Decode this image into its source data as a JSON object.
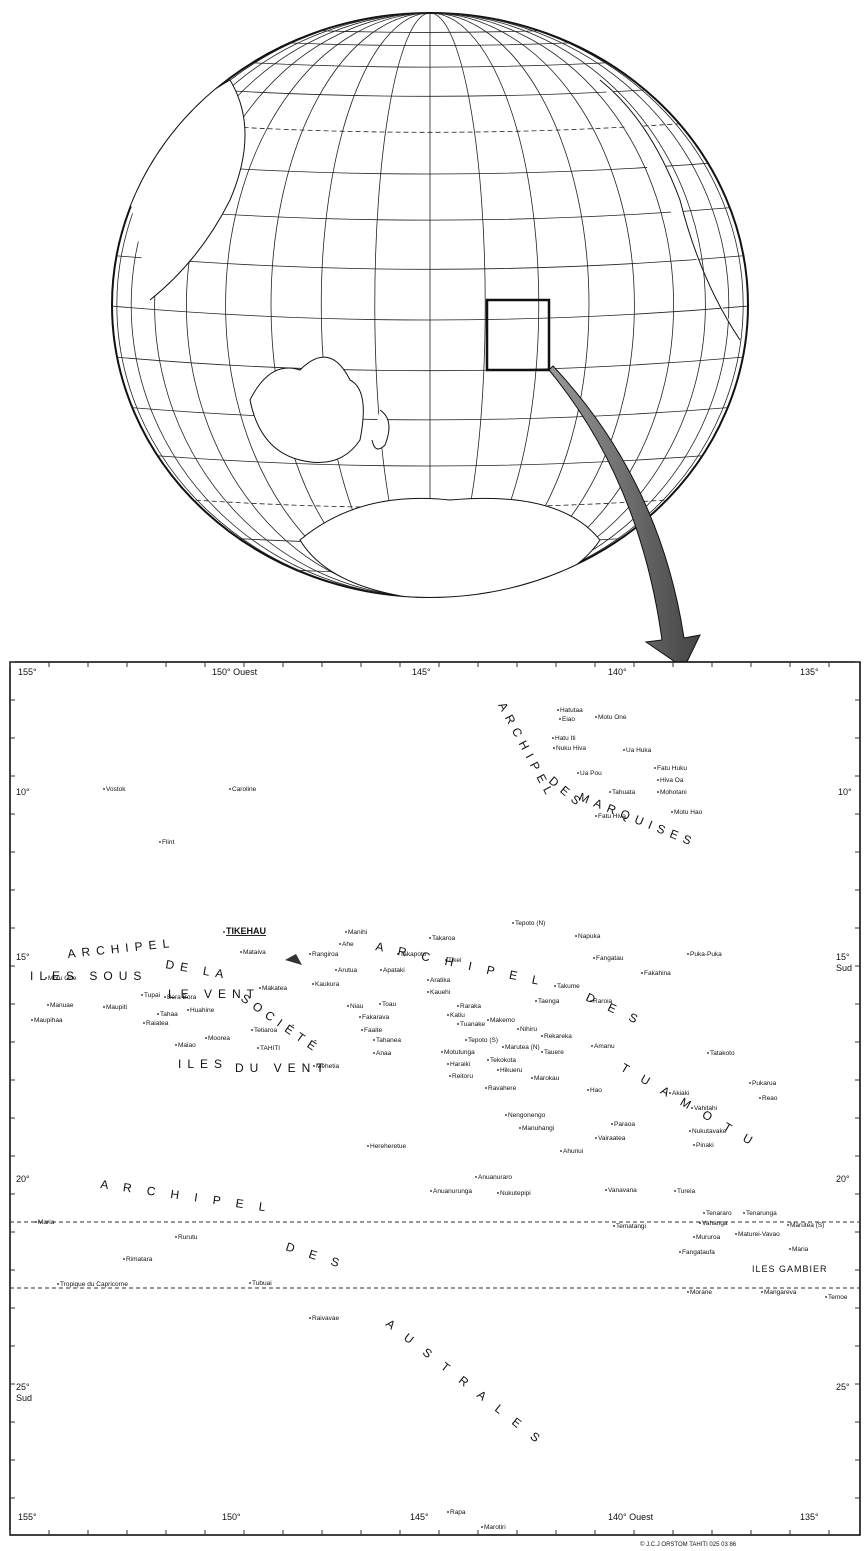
{
  "map": {
    "axis_top": [
      "155°",
      "150° Ouest",
      "145°",
      "140°",
      "135°"
    ],
    "axis_bottom": [
      "155°",
      "150°",
      "145°",
      "140° Ouest",
      "135°"
    ],
    "axis_left": [
      "10°",
      "15°",
      "20°",
      "25°",
      "Sud"
    ],
    "axis_right": [
      "10°",
      "15°",
      "Sud",
      "20°",
      "25°"
    ],
    "regions": [
      "ARCHIPEL",
      "DES",
      "MARQUISES",
      "A R C H I P E L",
      "D E S",
      "T U A M O T U",
      "ARCHIPEL",
      "DE LA",
      "SOCIÉTÉ",
      "ILES SOUS",
      "LE VENT",
      "ILES",
      "DU VENT",
      "A R C H I P E L",
      "D E S",
      "A U S T R A L E S",
      "ILES GAMBIER"
    ],
    "islands": [
      "Hatutaa",
      "Eiao",
      "Motu One",
      "Hatu Iti",
      "Nuku Hiva",
      "Ua Huka",
      "Ua Pou",
      "Fatu Huku",
      "Hiva Oa",
      "Tahuata",
      "Mohotani",
      "Fatu Hiva",
      "Motu Hao",
      "Vostok",
      "Caroline",
      "Flint",
      "TIKEHAU",
      "Manihi",
      "Takaroa",
      "Tepoto (N)",
      "Napuka",
      "Mataiva",
      "Rangiroa",
      "Ahe",
      "Takapoto",
      "Tikei",
      "Puka-Puka",
      "Arutua",
      "Apataki",
      "Kaukura",
      "Aratika",
      "Kauehi",
      "Fangatau",
      "Fakahina",
      "Takume",
      "Taenga",
      "Raroia",
      "Makatea",
      "Niau",
      "Toau",
      "Raraka",
      "Katiu",
      "Makemo",
      "Fakarava",
      "Faaite",
      "Tuanake",
      "Tahanea",
      "Tepoto (S)",
      "Nihiru",
      "Motutunga",
      "Anaa",
      "Marutea (N)",
      "Rekareka",
      "Tauere",
      "Tekokota",
      "Haraiki",
      "Hikueru",
      "Reitoru",
      "Marokau",
      "Ravahere",
      "Amanu",
      "Hao",
      "Tatakoto",
      "Akiaki",
      "Pukarua",
      "Reao",
      "Vahitahi",
      "Nengonengo",
      "Manuhangi",
      "Paraoa",
      "Vairaatea",
      "Nukutavake",
      "Pinaki",
      "Hereheretue",
      "Ahunui",
      "Anuanuraro",
      "Anuanurunga",
      "Nukutepipi",
      "Vanavana",
      "Tureia",
      "Tenararo",
      "Tenarunga",
      "Vahanga",
      "Marutea (S)",
      "Tematangi",
      "Mururoa",
      "Maturei-Vavao",
      "Fangataufa",
      "Maria",
      "Morane",
      "Mangareva",
      "Temoe",
      "Motu One",
      "Manuae",
      "Maupihaa",
      "Tupai",
      "Bora Bora",
      "Maupiti",
      "Tahaa",
      "Huahine",
      "Raiatea",
      "Tetiaroa",
      "Maiao",
      "Moorea",
      "TAHITI",
      "Mehetia",
      "Maria",
      "Rurutu",
      "Rimatara",
      "Tubuai",
      "Tropique du Capricorne",
      "Raivavae",
      "Rapa",
      "Marotiri"
    ],
    "credit": "© J.C.J ORSTOM TAHITI 025 03 86"
  }
}
